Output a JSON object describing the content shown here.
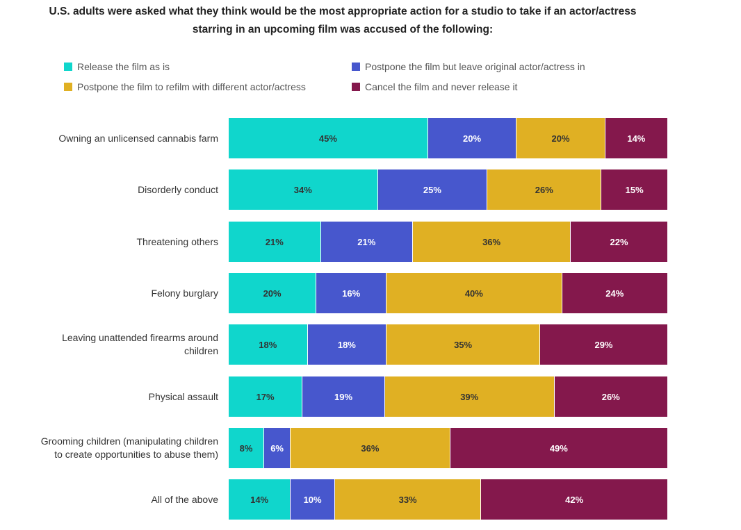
{
  "chart_data": {
    "type": "bar",
    "orientation": "horizontal-stacked-100",
    "title": "U.S. adults were asked what they think would be the most appropriate action for a studio to take if an actor/actress starring in an upcoming film was accused of the following:",
    "xlabel": "",
    "ylabel": "",
    "xlim": [
      0,
      100
    ],
    "grid": false,
    "legend_position": "top",
    "categories": [
      "Owning an unlicensed cannabis farm",
      "Disorderly conduct",
      "Threatening others",
      "Felony burglary",
      "Leaving unattended firearms around children",
      "Physical assault",
      "Grooming children (manipulating children to create opportunities to abuse them)",
      "All of the above"
    ],
    "category_lines": [
      [
        "Owning an unlicensed cannabis farm"
      ],
      [
        "Disorderly conduct"
      ],
      [
        "Threatening others"
      ],
      [
        "Felony burglary"
      ],
      [
        "Leaving unattended firearms around",
        "children"
      ],
      [
        "Physical assault"
      ],
      [
        "Grooming children (manipulating children",
        "to create opportunities to abuse them)"
      ],
      [
        "All of the above"
      ]
    ],
    "series": [
      {
        "name": "Release the film as is",
        "color": "#10d6cc",
        "text": "dark",
        "values": [
          45,
          34,
          21,
          20,
          18,
          17,
          8,
          14
        ]
      },
      {
        "name": "Postpone the film but leave original actor/actress in",
        "color": "#4757cd",
        "text": "light",
        "values": [
          20,
          25,
          21,
          16,
          18,
          19,
          6,
          10
        ]
      },
      {
        "name": "Postpone the film to refilm with different actor/actress",
        "color": "#e0b023",
        "text": "dark",
        "values": [
          20,
          26,
          36,
          40,
          35,
          39,
          36,
          33
        ]
      },
      {
        "name": "Cancel the film and never release it",
        "color": "#84184c",
        "text": "light",
        "values": [
          14,
          15,
          22,
          24,
          29,
          26,
          49,
          42
        ]
      }
    ],
    "value_suffix": "%"
  },
  "title_lines": [
    "U.S. adults were asked what they think would be the most appropriate action for a studio to take if an actor/actress",
    "starring in an upcoming film was accused of the following:"
  ]
}
